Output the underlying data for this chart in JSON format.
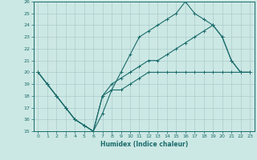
{
  "title": "",
  "xlabel": "Humidex (Indice chaleur)",
  "background_color": "#cce8e4",
  "line_color": "#1a6b6b",
  "grid_color": "#aacccc",
  "xlim": [
    -0.5,
    23.5
  ],
  "ylim": [
    15,
    26
  ],
  "xticks": [
    0,
    1,
    2,
    3,
    4,
    5,
    6,
    7,
    8,
    9,
    10,
    11,
    12,
    13,
    14,
    15,
    16,
    17,
    18,
    19,
    20,
    21,
    22,
    23
  ],
  "yticks": [
    15,
    16,
    17,
    18,
    19,
    20,
    21,
    22,
    23,
    24,
    25,
    26
  ],
  "line1_x": [
    0,
    1,
    2,
    3,
    4,
    5,
    6,
    7,
    8,
    9,
    10,
    11,
    12,
    13,
    14,
    15,
    16,
    17,
    18,
    19,
    20,
    21,
    22,
    23
  ],
  "line1_y": [
    20,
    19,
    18,
    17,
    16,
    15.5,
    15,
    16.5,
    18.5,
    18.5,
    19,
    19.5,
    20,
    20,
    20,
    20,
    20,
    20,
    20,
    20,
    20,
    20,
    20,
    20
  ],
  "line2_x": [
    0,
    1,
    2,
    3,
    4,
    5,
    6,
    7,
    8,
    9,
    10,
    11,
    12,
    13,
    14,
    15,
    16,
    17,
    18,
    19,
    20,
    21,
    22,
    23
  ],
  "line2_y": [
    20,
    19,
    18,
    17,
    16,
    15.5,
    15,
    18,
    18.5,
    20,
    21.5,
    23,
    23.5,
    24,
    24.5,
    25,
    26,
    25,
    24.5,
    24,
    23,
    21,
    20,
    20
  ],
  "line3_x": [
    0,
    1,
    2,
    3,
    4,
    5,
    6,
    7,
    8,
    9,
    10,
    11,
    12,
    13,
    14,
    15,
    16,
    17,
    18,
    19,
    20,
    21,
    22,
    23
  ],
  "line3_y": [
    20,
    19,
    18,
    17,
    16,
    15.5,
    15,
    18,
    19,
    19.5,
    20,
    20.5,
    21,
    21,
    21.5,
    22,
    22.5,
    23,
    23.5,
    24,
    23,
    21,
    20,
    20
  ]
}
